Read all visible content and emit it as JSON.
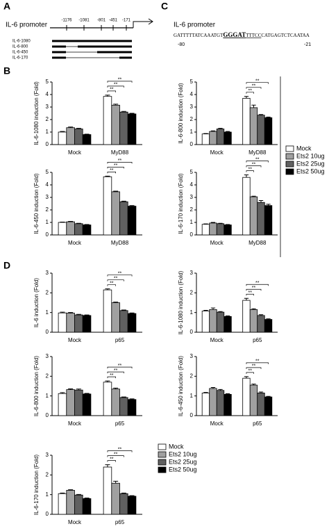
{
  "panels": [
    "A",
    "B",
    "C",
    "D"
  ],
  "promoter": {
    "title": "IL-6 promoter",
    "sites": [
      "-1176",
      "-1081",
      "-801",
      "-451",
      "-171"
    ],
    "constructs": [
      "IL-6-1080",
      "IL-6-800",
      "IL-6-450",
      "IL-6-170"
    ]
  },
  "sequence": {
    "title": "IL-6 promoter",
    "parts": [
      "GATTTTTATCAAATGT",
      "GGGAT",
      "TTTCC",
      "CATGAGTCTCAATAA"
    ],
    "start": "-80",
    "end": "-21"
  },
  "chart_data": [
    {
      "type": "bar",
      "ylabel": "IL-6-1080 induction (Fold)",
      "categories": [
        "Mock",
        "MyD88"
      ],
      "ylim": [
        0,
        5
      ],
      "yticks": [
        0,
        1,
        2,
        3,
        4,
        5
      ],
      "annotations": [
        "**",
        "**",
        "**"
      ],
      "series": [
        {
          "name": "Mock",
          "color": "#ffffff",
          "values": [
            1.0,
            3.85
          ],
          "errors": [
            0.05,
            0.1
          ]
        },
        {
          "name": "Ets2 10ug",
          "color": "#a0a0a0",
          "values": [
            1.35,
            3.15
          ],
          "errors": [
            0.05,
            0.08
          ]
        },
        {
          "name": "Ets2 25ug",
          "color": "#606060",
          "values": [
            1.25,
            2.6
          ],
          "errors": [
            0.05,
            0.05
          ]
        },
        {
          "name": "Ets2 50ug",
          "color": "#000000",
          "values": [
            0.8,
            2.45
          ],
          "errors": [
            0.03,
            0.05
          ]
        }
      ]
    },
    {
      "type": "bar",
      "ylabel": "IL-6-800 induction (Fold)",
      "categories": [
        "Mock",
        "MyD88"
      ],
      "ylim": [
        0,
        5
      ],
      "yticks": [
        0,
        1,
        2,
        3,
        4,
        5
      ],
      "annotations": [
        "**",
        "**",
        "**"
      ],
      "series": [
        {
          "name": "Mock",
          "color": "#ffffff",
          "values": [
            0.85,
            3.7
          ],
          "errors": [
            0.03,
            0.15
          ]
        },
        {
          "name": "Ets2 10ug",
          "color": "#a0a0a0",
          "values": [
            1.05,
            2.95
          ],
          "errors": [
            0.05,
            0.2
          ]
        },
        {
          "name": "Ets2 25ug",
          "color": "#606060",
          "values": [
            1.25,
            2.35
          ],
          "errors": [
            0.05,
            0.05
          ]
        },
        {
          "name": "Ets2 50ug",
          "color": "#000000",
          "values": [
            1.0,
            2.15
          ],
          "errors": [
            0.05,
            0.05
          ]
        }
      ]
    },
    {
      "type": "bar",
      "ylabel": "IL-6-450 induction (Fold)",
      "categories": [
        "Mock",
        "MyD88"
      ],
      "ylim": [
        0,
        5
      ],
      "yticks": [
        0,
        1,
        2,
        3,
        4,
        5
      ],
      "annotations": [
        "**",
        "**",
        "**"
      ],
      "series": [
        {
          "name": "Mock",
          "color": "#ffffff",
          "values": [
            1.0,
            4.65
          ],
          "errors": [
            0.03,
            0.05
          ]
        },
        {
          "name": "Ets2 10ug",
          "color": "#a0a0a0",
          "values": [
            1.05,
            3.45
          ],
          "errors": [
            0.03,
            0.05
          ]
        },
        {
          "name": "Ets2 25ug",
          "color": "#606060",
          "values": [
            0.9,
            2.65
          ],
          "errors": [
            0.03,
            0.05
          ]
        },
        {
          "name": "Ets2 50ug",
          "color": "#000000",
          "values": [
            0.8,
            2.3
          ],
          "errors": [
            0.03,
            0.05
          ]
        }
      ]
    },
    {
      "type": "bar",
      "ylabel": "IL-6-170 induction (Fold)",
      "categories": [
        "Mock",
        "MyD88"
      ],
      "ylim": [
        0,
        5
      ],
      "yticks": [
        0,
        1,
        2,
        3,
        4,
        5
      ],
      "annotations": [
        "**",
        "**",
        "**"
      ],
      "series": [
        {
          "name": "Mock",
          "color": "#ffffff",
          "values": [
            0.85,
            4.6
          ],
          "errors": [
            0.03,
            0.2
          ]
        },
        {
          "name": "Ets2 10ug",
          "color": "#a0a0a0",
          "values": [
            0.95,
            3.05
          ],
          "errors": [
            0.05,
            0.05
          ]
        },
        {
          "name": "Ets2 25ug",
          "color": "#606060",
          "values": [
            0.9,
            2.6
          ],
          "errors": [
            0.03,
            0.15
          ]
        },
        {
          "name": "Ets2 50ug",
          "color": "#000000",
          "values": [
            0.8,
            2.35
          ],
          "errors": [
            0.03,
            0.1
          ]
        }
      ]
    },
    {
      "type": "bar",
      "ylabel": "IL-6 induction (Fold)",
      "categories": [
        "Mock",
        "p65"
      ],
      "ylim": [
        0,
        3
      ],
      "yticks": [
        0,
        1,
        2,
        3
      ],
      "annotations": [
        "**",
        "**",
        "**"
      ],
      "series": [
        {
          "name": "Mock",
          "color": "#ffffff",
          "values": [
            0.98,
            2.15
          ],
          "errors": [
            0.04,
            0.05
          ]
        },
        {
          "name": "Ets2 10ug",
          "color": "#a0a0a0",
          "values": [
            0.97,
            1.5
          ],
          "errors": [
            0.03,
            0.03
          ]
        },
        {
          "name": "Ets2 25ug",
          "color": "#606060",
          "values": [
            0.88,
            1.1
          ],
          "errors": [
            0.03,
            0.03
          ]
        },
        {
          "name": "Ets2 50ug",
          "color": "#000000",
          "values": [
            0.85,
            0.95
          ],
          "errors": [
            0.03,
            0.03
          ]
        }
      ]
    },
    {
      "type": "bar",
      "ylabel": "IL-6-1080 induction (Fold)",
      "categories": [
        "Mock",
        "p65"
      ],
      "ylim": [
        0,
        3
      ],
      "yticks": [
        0,
        1,
        2,
        3
      ],
      "annotations": [
        "**",
        "**",
        "**"
      ],
      "series": [
        {
          "name": "Mock",
          "color": "#ffffff",
          "values": [
            1.08,
            1.62
          ],
          "errors": [
            0.03,
            0.1
          ]
        },
        {
          "name": "Ets2 10ug",
          "color": "#a0a0a0",
          "values": [
            1.15,
            1.15
          ],
          "errors": [
            0.08,
            0.04
          ]
        },
        {
          "name": "Ets2 25ug",
          "color": "#606060",
          "values": [
            1.02,
            0.85
          ],
          "errors": [
            0.03,
            0.04
          ]
        },
        {
          "name": "Ets2 50ug",
          "color": "#000000",
          "values": [
            0.8,
            0.65
          ],
          "errors": [
            0.03,
            0.03
          ]
        }
      ]
    },
    {
      "type": "bar",
      "ylabel": "IL-6-800 induction (Fold)",
      "categories": [
        "Mock",
        "p65"
      ],
      "ylim": [
        0,
        3
      ],
      "yticks": [
        0,
        1,
        2,
        3
      ],
      "annotations": [
        "**",
        "**",
        "**"
      ],
      "series": [
        {
          "name": "Mock",
          "color": "#ffffff",
          "values": [
            1.12,
            1.7
          ],
          "errors": [
            0.05,
            0.06
          ]
        },
        {
          "name": "Ets2 10ug",
          "color": "#a0a0a0",
          "values": [
            1.32,
            1.35
          ],
          "errors": [
            0.04,
            0.05
          ]
        },
        {
          "name": "Ets2 25ug",
          "color": "#606060",
          "values": [
            1.3,
            0.92
          ],
          "errors": [
            0.05,
            0.03
          ]
        },
        {
          "name": "Ets2 50ug",
          "color": "#000000",
          "values": [
            1.1,
            0.82
          ],
          "errors": [
            0.03,
            0.03
          ]
        }
      ]
    },
    {
      "type": "bar",
      "ylabel": "IL-6-450 induction (Fold)",
      "categories": [
        "Mock",
        "p65"
      ],
      "ylim": [
        0,
        3
      ],
      "yticks": [
        0,
        1,
        2,
        3
      ],
      "annotations": [
        "**",
        "**",
        "**"
      ],
      "series": [
        {
          "name": "Mock",
          "color": "#ffffff",
          "values": [
            1.15,
            1.9
          ],
          "errors": [
            0.03,
            0.08
          ]
        },
        {
          "name": "Ets2 10ug",
          "color": "#a0a0a0",
          "values": [
            1.38,
            1.55
          ],
          "errors": [
            0.05,
            0.05
          ]
        },
        {
          "name": "Ets2 25ug",
          "color": "#606060",
          "values": [
            1.28,
            1.15
          ],
          "errors": [
            0.05,
            0.05
          ]
        },
        {
          "name": "Ets2 50ug",
          "color": "#000000",
          "values": [
            1.08,
            0.95
          ],
          "errors": [
            0.03,
            0.03
          ]
        }
      ]
    },
    {
      "type": "bar",
      "ylabel": "IL-6-170 induction (Fold)",
      "categories": [
        "Mock",
        "p65"
      ],
      "ylim": [
        0,
        3
      ],
      "yticks": [
        0,
        1,
        2,
        3
      ],
      "annotations": [
        "**",
        "**",
        "**"
      ],
      "series": [
        {
          "name": "Mock",
          "color": "#ffffff",
          "values": [
            1.05,
            2.4
          ],
          "errors": [
            0.03,
            0.12
          ]
        },
        {
          "name": "Ets2 10ug",
          "color": "#a0a0a0",
          "values": [
            1.22,
            1.58
          ],
          "errors": [
            0.03,
            0.1
          ]
        },
        {
          "name": "Ets2 25ug",
          "color": "#606060",
          "values": [
            0.98,
            1.05
          ],
          "errors": [
            0.03,
            0.03
          ]
        },
        {
          "name": "Ets2 50ug",
          "color": "#000000",
          "values": [
            0.8,
            0.92
          ],
          "errors": [
            0.03,
            0.03
          ]
        }
      ]
    }
  ]
}
